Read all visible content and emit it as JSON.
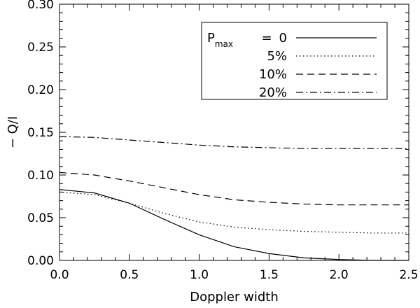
{
  "chart_data": {
    "type": "line",
    "title": "",
    "xlabel": "Doppler width",
    "ylabel": "− Q/I",
    "xlim": [
      0,
      2.5
    ],
    "ylim": [
      0,
      0.3
    ],
    "x_ticks": [
      "0.0",
      "0.5",
      "1.0",
      "1.5",
      "2.0",
      "2.5"
    ],
    "y_ticks": [
      "0.00",
      "0.05",
      "0.10",
      "0.15",
      "0.20",
      "0.25",
      "0.30"
    ],
    "x": [
      0,
      0.25,
      0.5,
      0.75,
      1.0,
      1.25,
      1.5,
      1.75,
      2.0,
      2.25,
      2.5
    ],
    "legend": {
      "placement": "top-right",
      "title_symbol": "P",
      "title_subscript": "max",
      "title_equals": "="
    },
    "series": [
      {
        "name": "0",
        "style": "solid",
        "values": [
          0.083,
          0.079,
          0.067,
          0.048,
          0.03,
          0.016,
          0.008,
          0.003,
          0.001,
          0.0,
          0.0
        ]
      },
      {
        "name": "5%",
        "style": "dotted",
        "values": [
          0.08,
          0.077,
          0.067,
          0.055,
          0.045,
          0.039,
          0.036,
          0.034,
          0.033,
          0.032,
          0.032
        ]
      },
      {
        "name": "10%",
        "style": "dashed",
        "values": [
          0.103,
          0.1,
          0.093,
          0.085,
          0.077,
          0.071,
          0.068,
          0.066,
          0.065,
          0.065,
          0.065
        ]
      },
      {
        "name": "20%",
        "style": "dash-dot",
        "values": [
          0.145,
          0.144,
          0.141,
          0.138,
          0.135,
          0.133,
          0.132,
          0.131,
          0.131,
          0.131,
          0.131
        ]
      }
    ],
    "grid": false,
    "line_color": "#000000"
  }
}
